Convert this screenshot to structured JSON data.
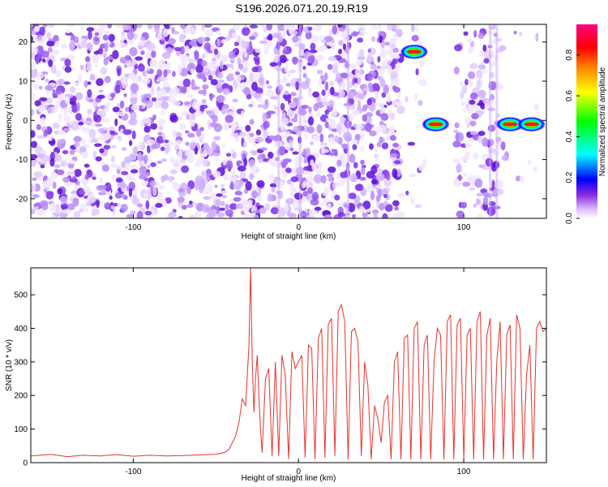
{
  "title": "S196.2026.071.20.19.R19",
  "chart_data": [
    {
      "type": "heatmap",
      "xlabel": "Height of straight line (km)",
      "ylabel": "Frequency (Hz)",
      "xlim": [
        -162,
        150
      ],
      "ylim": [
        -25,
        24.5
      ],
      "x_ticks": [
        -100,
        0,
        100
      ],
      "y_ticks": [
        -20,
        -10,
        0,
        10,
        20
      ],
      "colorbar": {
        "label": "Normalized spectral amplitude",
        "range": [
          0,
          0.95
        ],
        "ticks": [
          0.0,
          0.2,
          0.4,
          0.6,
          0.8
        ],
        "tick_labels": [
          "0.0",
          "0.2",
          "0.4",
          "0.6",
          "0.8"
        ],
        "colors": [
          "#ffffff",
          "#e8d4ff",
          "#8a2be2",
          "#0000ff",
          "#00ffff",
          "#00ff00",
          "#ffff00",
          "#ff8000",
          "#ff0000",
          "#ff0080"
        ]
      },
      "peaks": [
        {
          "x": 70,
          "y": 17.5,
          "amplitude": 0.9
        },
        {
          "x": 83,
          "y": -1,
          "amplitude": 0.9
        },
        {
          "x": 128,
          "y": -1,
          "amplitude": 0.85
        },
        {
          "x": 141,
          "y": -1,
          "amplitude": 0.9
        }
      ],
      "empty_regions_x": [
        [
          77,
          90
        ],
        [
          90,
          95
        ],
        [
          146,
          150
        ]
      ]
    },
    {
      "type": "line",
      "xlabel": "Height of straight line (km)",
      "ylabel": "SNR (10 * v/v)",
      "xlim": [
        -162,
        150
      ],
      "ylim": [
        0,
        580
      ],
      "x_ticks": [
        -100,
        0,
        100
      ],
      "y_ticks": [
        0,
        100,
        200,
        300,
        400,
        500
      ],
      "series": [
        {
          "color": "#e8322b",
          "x": [
            -162,
            -150,
            -140,
            -130,
            -120,
            -110,
            -100,
            -90,
            -80,
            -70,
            -60,
            -50,
            -45,
            -42,
            -40,
            -38,
            -36,
            -34,
            -32,
            -30,
            -29,
            -28,
            -27,
            -26,
            -25,
            -24,
            -23,
            -22,
            -20,
            -18,
            -16,
            -14,
            -12,
            -10,
            -8,
            -6,
            -4,
            -2,
            0,
            2,
            4,
            6,
            8,
            10,
            12,
            14,
            16,
            18,
            20,
            22,
            24,
            26,
            28,
            30,
            32,
            34,
            36,
            38,
            40,
            42,
            44,
            46,
            48,
            50,
            52,
            54,
            56,
            58,
            60,
            62,
            64,
            66,
            68,
            70,
            72,
            74,
            76,
            78,
            80,
            82,
            84,
            86,
            88,
            90,
            92,
            94,
            96,
            98,
            100,
            102,
            104,
            106,
            108,
            110,
            112,
            114,
            116,
            118,
            120,
            122,
            124,
            126,
            128,
            130,
            132,
            134,
            136,
            138,
            140,
            142,
            144,
            146,
            148,
            150
          ],
          "y": [
            20,
            25,
            18,
            22,
            20,
            24,
            19,
            22,
            20,
            21,
            23,
            25,
            30,
            40,
            60,
            80,
            120,
            190,
            170,
            350,
            580,
            300,
            150,
            250,
            320,
            200,
            100,
            30,
            250,
            280,
            20,
            300,
            20,
            320,
            260,
            10,
            330,
            280,
            300,
            320,
            15,
            350,
            340,
            10,
            370,
            400,
            15,
            410,
            430,
            20,
            450,
            470,
            420,
            10,
            390,
            400,
            360,
            20,
            300,
            230,
            10,
            170,
            130,
            60,
            180,
            200,
            10,
            300,
            330,
            10,
            370,
            380,
            10,
            400,
            420,
            10,
            350,
            380,
            10,
            300,
            400,
            380,
            10,
            420,
            440,
            10,
            410,
            430,
            10,
            380,
            400,
            10,
            420,
            450,
            10,
            380,
            430,
            10,
            300,
            420,
            10,
            380,
            410,
            10,
            440,
            400,
            10,
            260,
            350,
            10,
            400,
            420,
            390,
            400
          ]
        }
      ]
    }
  ]
}
